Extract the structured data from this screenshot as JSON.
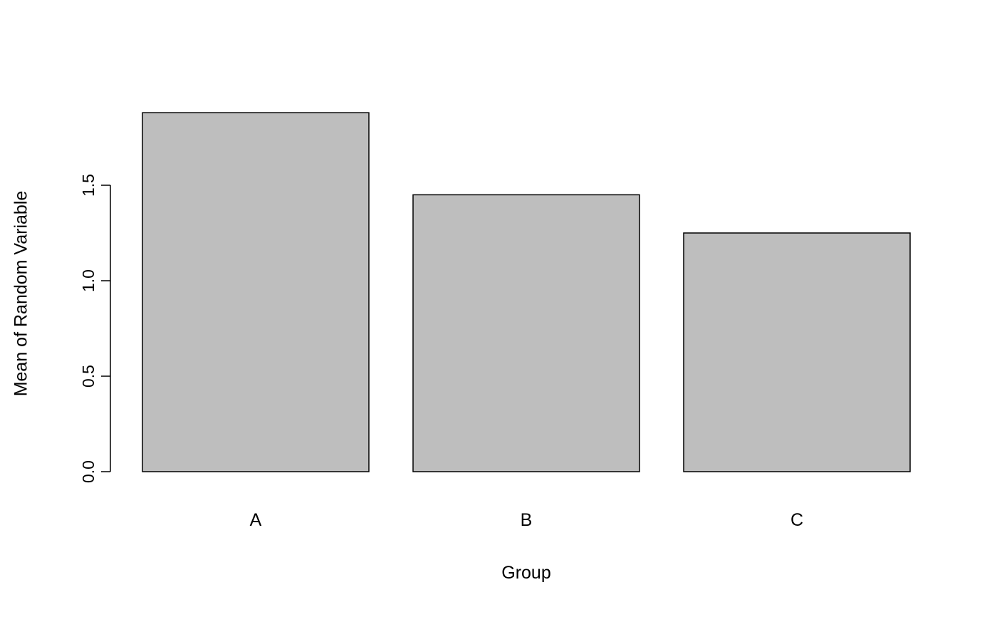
{
  "chart_data": {
    "type": "bar",
    "categories": [
      "A",
      "B",
      "C"
    ],
    "values": [
      1.88,
      1.45,
      1.25
    ],
    "title": "",
    "xlabel": "Group",
    "ylabel": "Mean of Random Variable",
    "ylim": [
      0,
      1.9
    ],
    "yticks": [
      0,
      0.5,
      1.0,
      1.5
    ],
    "ytick_labels": [
      "0.0",
      "0.5",
      "1.0",
      "1.5"
    ],
    "grid": false,
    "legend": false,
    "bar_fill": "#BEBEBE",
    "bar_stroke": "#000000",
    "axis_color": "#000000",
    "background": "#FFFFFF"
  }
}
